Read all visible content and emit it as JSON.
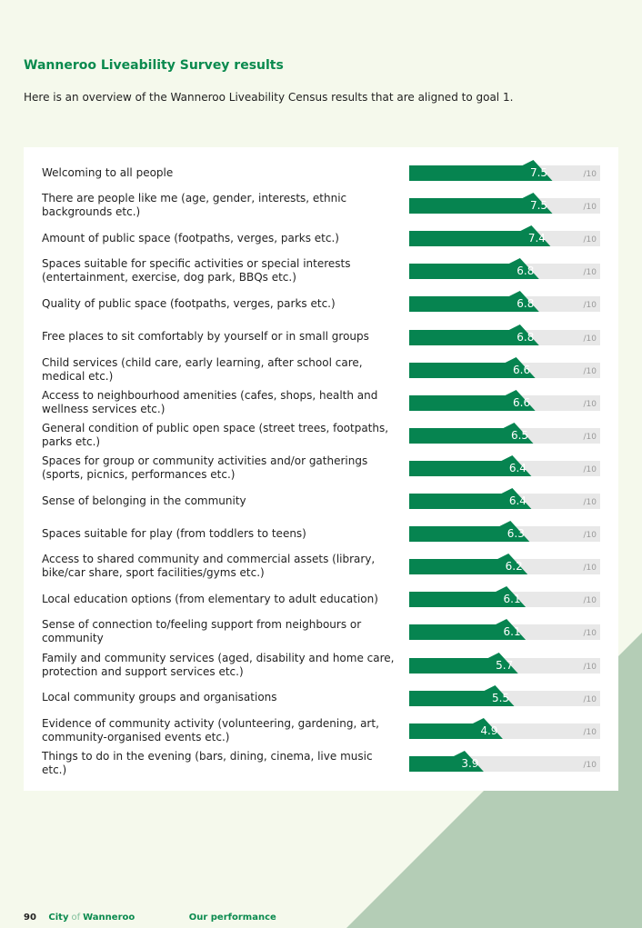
{
  "header": {
    "title": "Wanneroo Liveability Survey results",
    "intro": "Here is an overview of the Wanneroo Liveability Census results that are aligned to goal 1."
  },
  "colors": {
    "bar": "#068450",
    "track": "#e8e8e8",
    "accent": "#0a8a4e",
    "decor": "#b4cdb6",
    "background": "#f5f9ec"
  },
  "chart_data": {
    "type": "bar",
    "orientation": "horizontal",
    "categories": [
      "Welcoming to all people",
      "There are people like me (age, gender, interests, ethnic backgrounds etc.)",
      "Amount of public space (footpaths, verges, parks etc.)",
      "Spaces suitable for specific activities or special interests (entertainment, exercise, dog park, BBQs etc.)",
      "Quality of public space (footpaths, verges, parks etc.)",
      "Free places to sit comfortably by yourself or in small groups",
      "Child services (child care, early learning, after school care, medical etc.)",
      "Access to neighbourhood amenities (cafes, shops, health and wellness services etc.)",
      "General condition of public open space (street trees, footpaths, parks etc.)",
      "Spaces for group or community activities and/or gatherings (sports, picnics, performances etc.)",
      "Sense of belonging in the community",
      "Spaces suitable for play (from toddlers to teens)",
      "Access to shared community and commercial assets (library, bike/car share, sport facilities/gyms etc.)",
      "Local education options (from elementary to adult education)",
      "Sense of connection to/feeling support from neighbours or community",
      "Family and community services (aged, disability and home care, protection and support services etc.)",
      "Local community groups and organisations",
      "Evidence of community activity (volunteering, gardening, art, community-organised events etc.)",
      "Things to do in the evening (bars, dining, cinema, live music etc.)"
    ],
    "values": [
      7.5,
      7.5,
      7.4,
      6.8,
      6.8,
      6.8,
      6.6,
      6.6,
      6.5,
      6.4,
      6.4,
      6.3,
      6.2,
      6.1,
      6.1,
      5.7,
      5.5,
      4.9,
      3.9
    ],
    "value_labels": [
      "7.5",
      "7.5",
      "7.4",
      "6.8",
      "6.8",
      "6.8",
      "6.6",
      "6.6",
      "6.5",
      "6.4",
      "6.4",
      "6.3",
      "6.2",
      "6.1",
      "6.1",
      "5.7",
      "5.5",
      "4.9",
      "3.9"
    ],
    "max_label": "/10",
    "xlim": [
      0,
      10
    ]
  },
  "footer": {
    "page": "90",
    "city": "City",
    "of": "of",
    "name": "Wanneroo",
    "section": "Our performance"
  }
}
